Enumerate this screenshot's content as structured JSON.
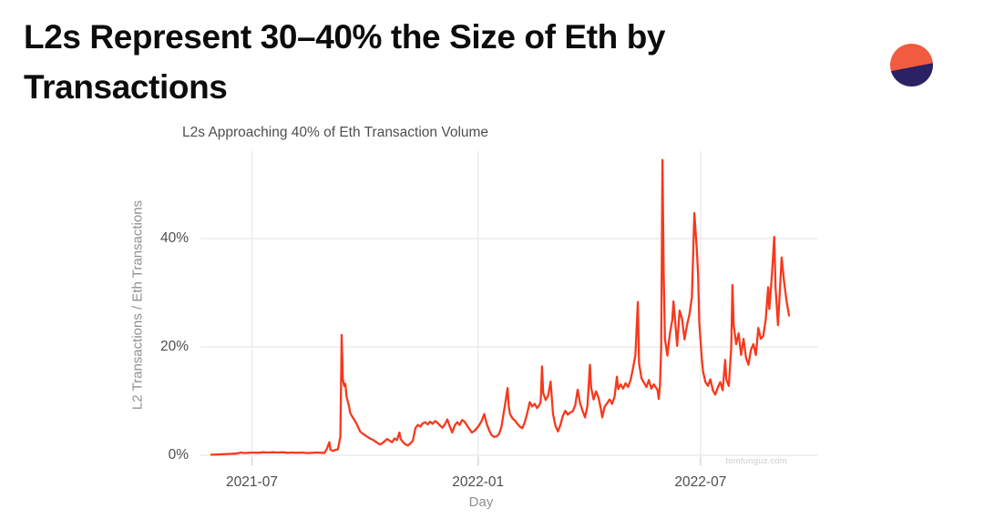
{
  "header": {
    "title": "L2s Represent 30–40% the Size of Eth by Transactions"
  },
  "logo": {
    "top_color": "#F15B40",
    "bottom_color": "#2A2262"
  },
  "chart_data": {
    "type": "line",
    "title": "L2s Approaching 40% of Eth Transaction Volume",
    "xlabel": "Day",
    "ylabel": "L2 Transactions / Eth Transactions",
    "watermark": "tomtunguz.com",
    "line_color": "#f6391d",
    "grid": true,
    "gridline_color": "#e8e8e8",
    "tick_mark_color": "#d4d4d4",
    "x_axis": {
      "unit": "days since 2021-05-29",
      "start_date": "2021-05-29",
      "end_date": "2022-09-11",
      "ticks": [
        {
          "day": 33,
          "label": "2021-07"
        },
        {
          "day": 217,
          "label": "2022-01"
        },
        {
          "day": 398,
          "label": "2022-07"
        }
      ]
    },
    "y_axis": {
      "unit": "percent",
      "range_shown": [
        0,
        56
      ],
      "ticks": [
        {
          "value": 0,
          "label": "0%"
        },
        {
          "value": 20,
          "label": "20%"
        },
        {
          "value": 40,
          "label": "40%"
        }
      ]
    },
    "series": [
      {
        "name": "L2 Transactions / Eth Transactions (%)",
        "points": [
          [
            0,
            0.1
          ],
          [
            5,
            0.15
          ],
          [
            10,
            0.2
          ],
          [
            15,
            0.25
          ],
          [
            20,
            0.3
          ],
          [
            24,
            0.5
          ],
          [
            27,
            0.4
          ],
          [
            30,
            0.45
          ],
          [
            34,
            0.5
          ],
          [
            38,
            0.45
          ],
          [
            42,
            0.55
          ],
          [
            46,
            0.5
          ],
          [
            50,
            0.55
          ],
          [
            54,
            0.5
          ],
          [
            58,
            0.55
          ],
          [
            62,
            0.45
          ],
          [
            66,
            0.5
          ],
          [
            70,
            0.45
          ],
          [
            74,
            0.5
          ],
          [
            78,
            0.4
          ],
          [
            82,
            0.45
          ],
          [
            86,
            0.5
          ],
          [
            90,
            0.45
          ],
          [
            92,
            0.4
          ],
          [
            94,
            1.2
          ],
          [
            96,
            2.4
          ],
          [
            97,
            1.0
          ],
          [
            99,
            0.8
          ],
          [
            101,
            1.0
          ],
          [
            103,
            1.1
          ],
          [
            105,
            3.5
          ],
          [
            106,
            22.2
          ],
          [
            107,
            14.0
          ],
          [
            108,
            12.8
          ],
          [
            109,
            13.2
          ],
          [
            110,
            10.8
          ],
          [
            112,
            9.0
          ],
          [
            113,
            7.8
          ],
          [
            115,
            7.0
          ],
          [
            117,
            6.3
          ],
          [
            119,
            5.4
          ],
          [
            121,
            4.4
          ],
          [
            123,
            4.0
          ],
          [
            125,
            3.7
          ],
          [
            127,
            3.4
          ],
          [
            129,
            3.1
          ],
          [
            131,
            2.9
          ],
          [
            133,
            2.6
          ],
          [
            135,
            2.3
          ],
          [
            137,
            2.0
          ],
          [
            139,
            2.2
          ],
          [
            141,
            2.6
          ],
          [
            143,
            3.0
          ],
          [
            145,
            2.7
          ],
          [
            147,
            2.4
          ],
          [
            149,
            3.1
          ],
          [
            151,
            2.8
          ],
          [
            153,
            4.2
          ],
          [
            154,
            3.0
          ],
          [
            156,
            2.4
          ],
          [
            158,
            2.0
          ],
          [
            160,
            1.8
          ],
          [
            162,
            2.2
          ],
          [
            164,
            2.7
          ],
          [
            166,
            5.0
          ],
          [
            168,
            5.6
          ],
          [
            170,
            5.3
          ],
          [
            172,
            5.9
          ],
          [
            174,
            6.1
          ],
          [
            176,
            5.7
          ],
          [
            178,
            6.2
          ],
          [
            180,
            5.8
          ],
          [
            182,
            6.3
          ],
          [
            184,
            6.0
          ],
          [
            186,
            5.5
          ],
          [
            188,
            5.1
          ],
          [
            190,
            5.7
          ],
          [
            192,
            6.6
          ],
          [
            194,
            5.3
          ],
          [
            196,
            4.2
          ],
          [
            198,
            5.5
          ],
          [
            200,
            6.1
          ],
          [
            202,
            5.6
          ],
          [
            204,
            6.5
          ],
          [
            206,
            6.2
          ],
          [
            208,
            5.5
          ],
          [
            210,
            4.8
          ],
          [
            212,
            4.2
          ],
          [
            214,
            4.5
          ],
          [
            216,
            5.0
          ],
          [
            218,
            5.6
          ],
          [
            220,
            6.4
          ],
          [
            222,
            7.6
          ],
          [
            224,
            5.8
          ],
          [
            226,
            4.6
          ],
          [
            228,
            3.7
          ],
          [
            230,
            3.4
          ],
          [
            232,
            3.5
          ],
          [
            234,
            3.9
          ],
          [
            236,
            5.2
          ],
          [
            238,
            8.0
          ],
          [
            239,
            9.4
          ],
          [
            241,
            12.4
          ],
          [
            242,
            9.0
          ],
          [
            243,
            7.6
          ],
          [
            245,
            6.8
          ],
          [
            247,
            6.4
          ],
          [
            249,
            5.8
          ],
          [
            251,
            5.3
          ],
          [
            253,
            5.0
          ],
          [
            255,
            6.1
          ],
          [
            257,
            7.8
          ],
          [
            259,
            9.8
          ],
          [
            261,
            9.0
          ],
          [
            263,
            9.5
          ],
          [
            265,
            8.7
          ],
          [
            267,
            9.3
          ],
          [
            268,
            10.0
          ],
          [
            269,
            16.4
          ],
          [
            270,
            11.5
          ],
          [
            272,
            10.2
          ],
          [
            274,
            11.0
          ],
          [
            276,
            13.6
          ],
          [
            277,
            10.5
          ],
          [
            278,
            7.6
          ],
          [
            280,
            5.4
          ],
          [
            282,
            4.4
          ],
          [
            284,
            5.6
          ],
          [
            286,
            7.3
          ],
          [
            288,
            8.2
          ],
          [
            290,
            7.5
          ],
          [
            292,
            7.9
          ],
          [
            294,
            8.1
          ],
          [
            296,
            9.2
          ],
          [
            298,
            12.1
          ],
          [
            300,
            9.6
          ],
          [
            302,
            8.2
          ],
          [
            304,
            7.0
          ],
          [
            306,
            9.2
          ],
          [
            308,
            16.7
          ],
          [
            309,
            12.5
          ],
          [
            311,
            10.3
          ],
          [
            313,
            11.8
          ],
          [
            315,
            10.6
          ],
          [
            317,
            8.5
          ],
          [
            318,
            7.0
          ],
          [
            320,
            9.0
          ],
          [
            322,
            9.6
          ],
          [
            324,
            10.3
          ],
          [
            326,
            9.5
          ],
          [
            328,
            10.8
          ],
          [
            330,
            14.5
          ],
          [
            331,
            12.2
          ],
          [
            333,
            13.1
          ],
          [
            335,
            12.3
          ],
          [
            337,
            13.3
          ],
          [
            339,
            12.6
          ],
          [
            341,
            13.8
          ],
          [
            343,
            16.0
          ],
          [
            345,
            18.5
          ],
          [
            347,
            28.3
          ],
          [
            348,
            17.0
          ],
          [
            350,
            14.2
          ],
          [
            352,
            13.4
          ],
          [
            354,
            12.6
          ],
          [
            356,
            13.9
          ],
          [
            358,
            12.3
          ],
          [
            360,
            13.1
          ],
          [
            362,
            12.4
          ],
          [
            363,
            12.0
          ],
          [
            364,
            10.4
          ],
          [
            365,
            13.0
          ],
          [
            366,
            20.0
          ],
          [
            367,
            54.5
          ],
          [
            368,
            34.0
          ],
          [
            369,
            21.5
          ],
          [
            371,
            18.4
          ],
          [
            373,
            22.4
          ],
          [
            375,
            25.0
          ],
          [
            376,
            28.4
          ],
          [
            378,
            23.0
          ],
          [
            379,
            20.2
          ],
          [
            381,
            26.7
          ],
          [
            383,
            25.2
          ],
          [
            385,
            21.4
          ],
          [
            387,
            24.0
          ],
          [
            389,
            26.0
          ],
          [
            391,
            29.2
          ],
          [
            393,
            44.7
          ],
          [
            395,
            38.0
          ],
          [
            396,
            33.4
          ],
          [
            397,
            24.5
          ],
          [
            399,
            18.0
          ],
          [
            400,
            15.5
          ],
          [
            402,
            13.5
          ],
          [
            404,
            12.8
          ],
          [
            406,
            14.0
          ],
          [
            408,
            12.0
          ],
          [
            410,
            11.2
          ],
          [
            412,
            12.5
          ],
          [
            414,
            13.5
          ],
          [
            416,
            12.0
          ],
          [
            418,
            17.6
          ],
          [
            419,
            14.0
          ],
          [
            421,
            12.8
          ],
          [
            423,
            20.0
          ],
          [
            424,
            31.4
          ],
          [
            425,
            24.0
          ],
          [
            427,
            20.5
          ],
          [
            429,
            22.5
          ],
          [
            431,
            18.5
          ],
          [
            433,
            21.5
          ],
          [
            435,
            18.0
          ],
          [
            437,
            16.7
          ],
          [
            439,
            19.5
          ],
          [
            441,
            20.5
          ],
          [
            443,
            18.5
          ],
          [
            445,
            23.5
          ],
          [
            447,
            21.5
          ],
          [
            449,
            22.0
          ],
          [
            451,
            25.0
          ],
          [
            453,
            31.0
          ],
          [
            454,
            27.0
          ],
          [
            456,
            33.0
          ],
          [
            458,
            40.3
          ],
          [
            459,
            31.0
          ],
          [
            461,
            24.0
          ],
          [
            464,
            36.5
          ],
          [
            466,
            32.0
          ],
          [
            468,
            28.5
          ],
          [
            470,
            25.8
          ]
        ]
      }
    ]
  }
}
